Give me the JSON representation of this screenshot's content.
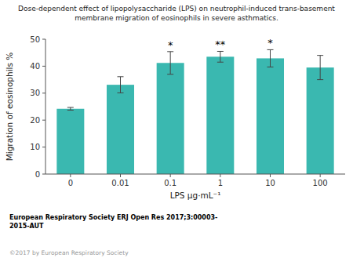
{
  "chart_data": {
    "type": "bar",
    "title": "Dose-dependent effect of lipopolysaccharide (LPS) on neutrophil-induced trans-basement\nmembrane migration of eosinophils in severe asthmatics.",
    "x_label": "LPS μg·mL⁻¹",
    "y_label": "Migration of eosinophils %",
    "categories": [
      "0",
      "0.01",
      "0.1",
      "1",
      "10",
      "100"
    ],
    "values": [
      24.2,
      33.1,
      41.2,
      43.5,
      42.9,
      39.5
    ],
    "errors": [
      0.5,
      3.0,
      4.2,
      2.0,
      3.2,
      4.5
    ],
    "color": "#3ab8b0",
    "ylim": [
      0,
      50
    ],
    "yticks": [
      0,
      10,
      20,
      30,
      40,
      50
    ],
    "grid": false,
    "annotations": [
      {
        "category": "0.1",
        "text": "*"
      },
      {
        "category": "1",
        "text": "**"
      },
      {
        "category": "10",
        "text": "*"
      }
    ],
    "footer": [
      "European Respiratory Society ERJ Open Res 2017;3:00003-\n2015-AUT",
      "©2017 by European Respiratory Society"
    ]
  }
}
